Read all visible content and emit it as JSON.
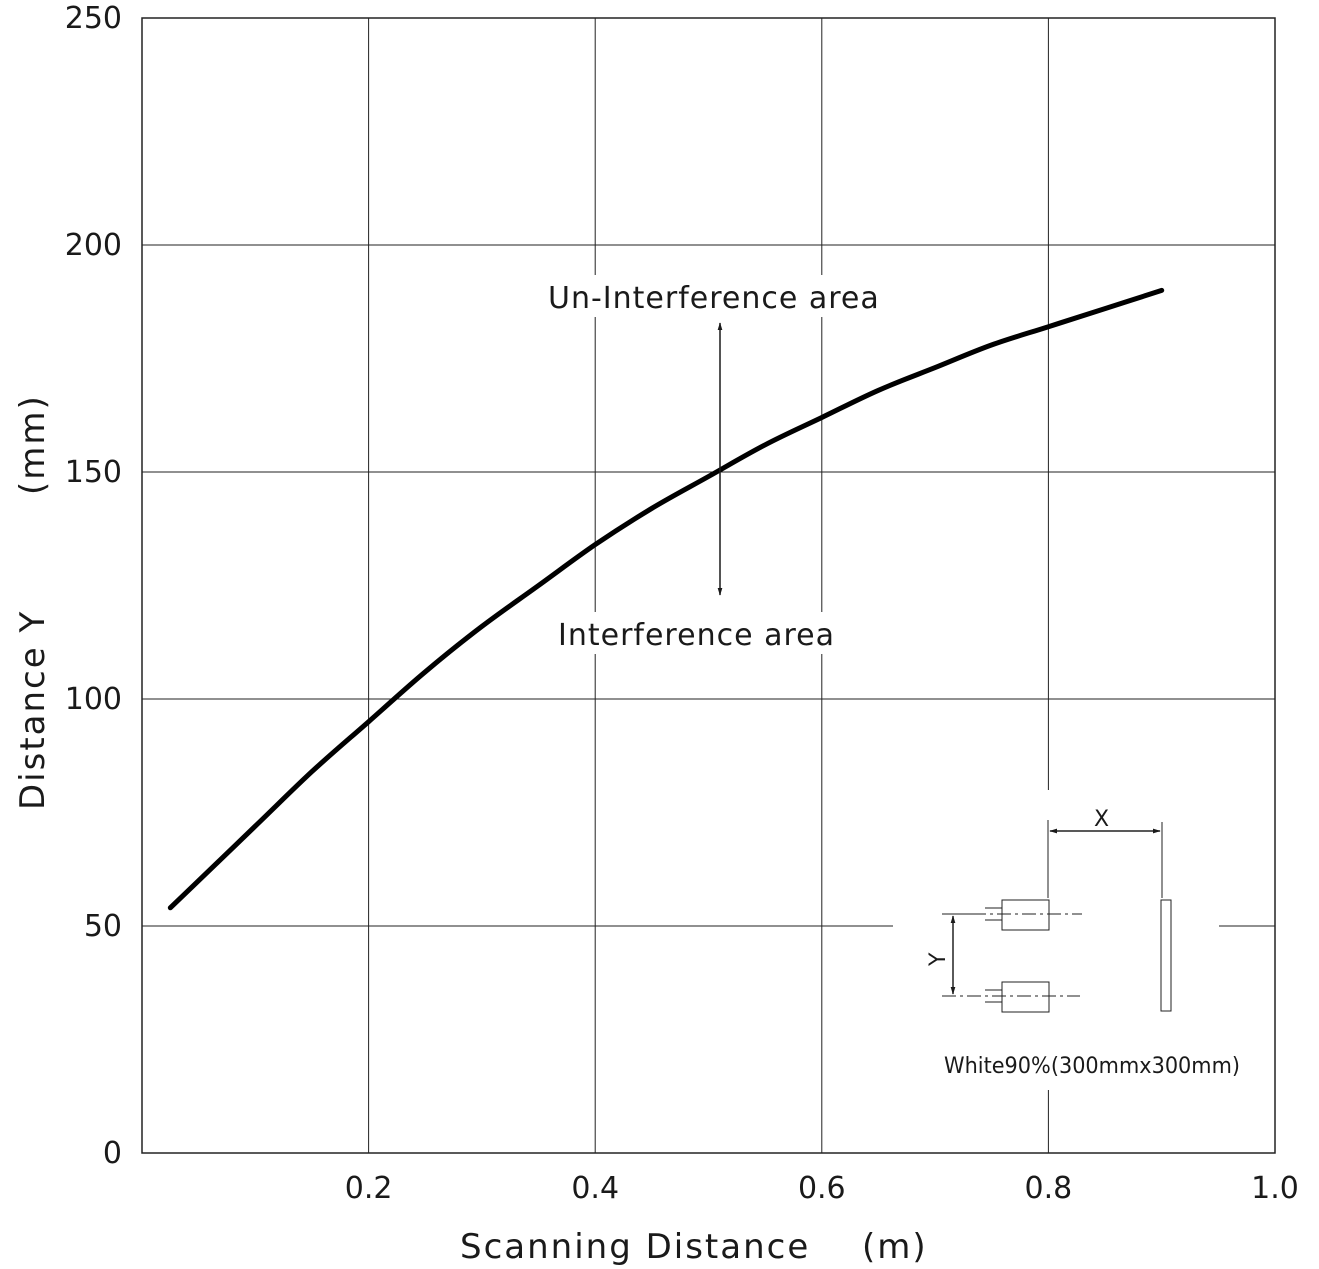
{
  "chart_data": {
    "type": "line",
    "xlabel": "Scanning Distance",
    "xlabel_unit": "(m)",
    "ylabel": "Distance Y",
    "ylabel_unit": "(mm)",
    "xlim": [
      0,
      1.0
    ],
    "ylim": [
      0,
      250
    ],
    "x_ticks": [
      "0.2",
      "0.4",
      "0.6",
      "0.8",
      "1.0"
    ],
    "y_ticks": [
      "0",
      "50",
      "100",
      "150",
      "200",
      "250"
    ],
    "grid": true,
    "series": [
      {
        "x": [
          0.025,
          0.05,
          0.1,
          0.15,
          0.2,
          0.25,
          0.3,
          0.35,
          0.4,
          0.45,
          0.5,
          0.55,
          0.6,
          0.65,
          0.7,
          0.75,
          0.8,
          0.85,
          0.9
        ],
        "y": [
          54,
          60,
          72,
          84,
          95,
          106,
          116,
          125,
          134,
          142,
          149,
          156,
          162,
          168,
          173,
          178,
          182,
          186,
          190
        ]
      }
    ],
    "annotations": {
      "upper": "Un-Interference area",
      "lower": "Interference area"
    }
  },
  "inset": {
    "x_label": "X",
    "y_label": "Y",
    "caption": "White90%(300mmx300mm)"
  }
}
